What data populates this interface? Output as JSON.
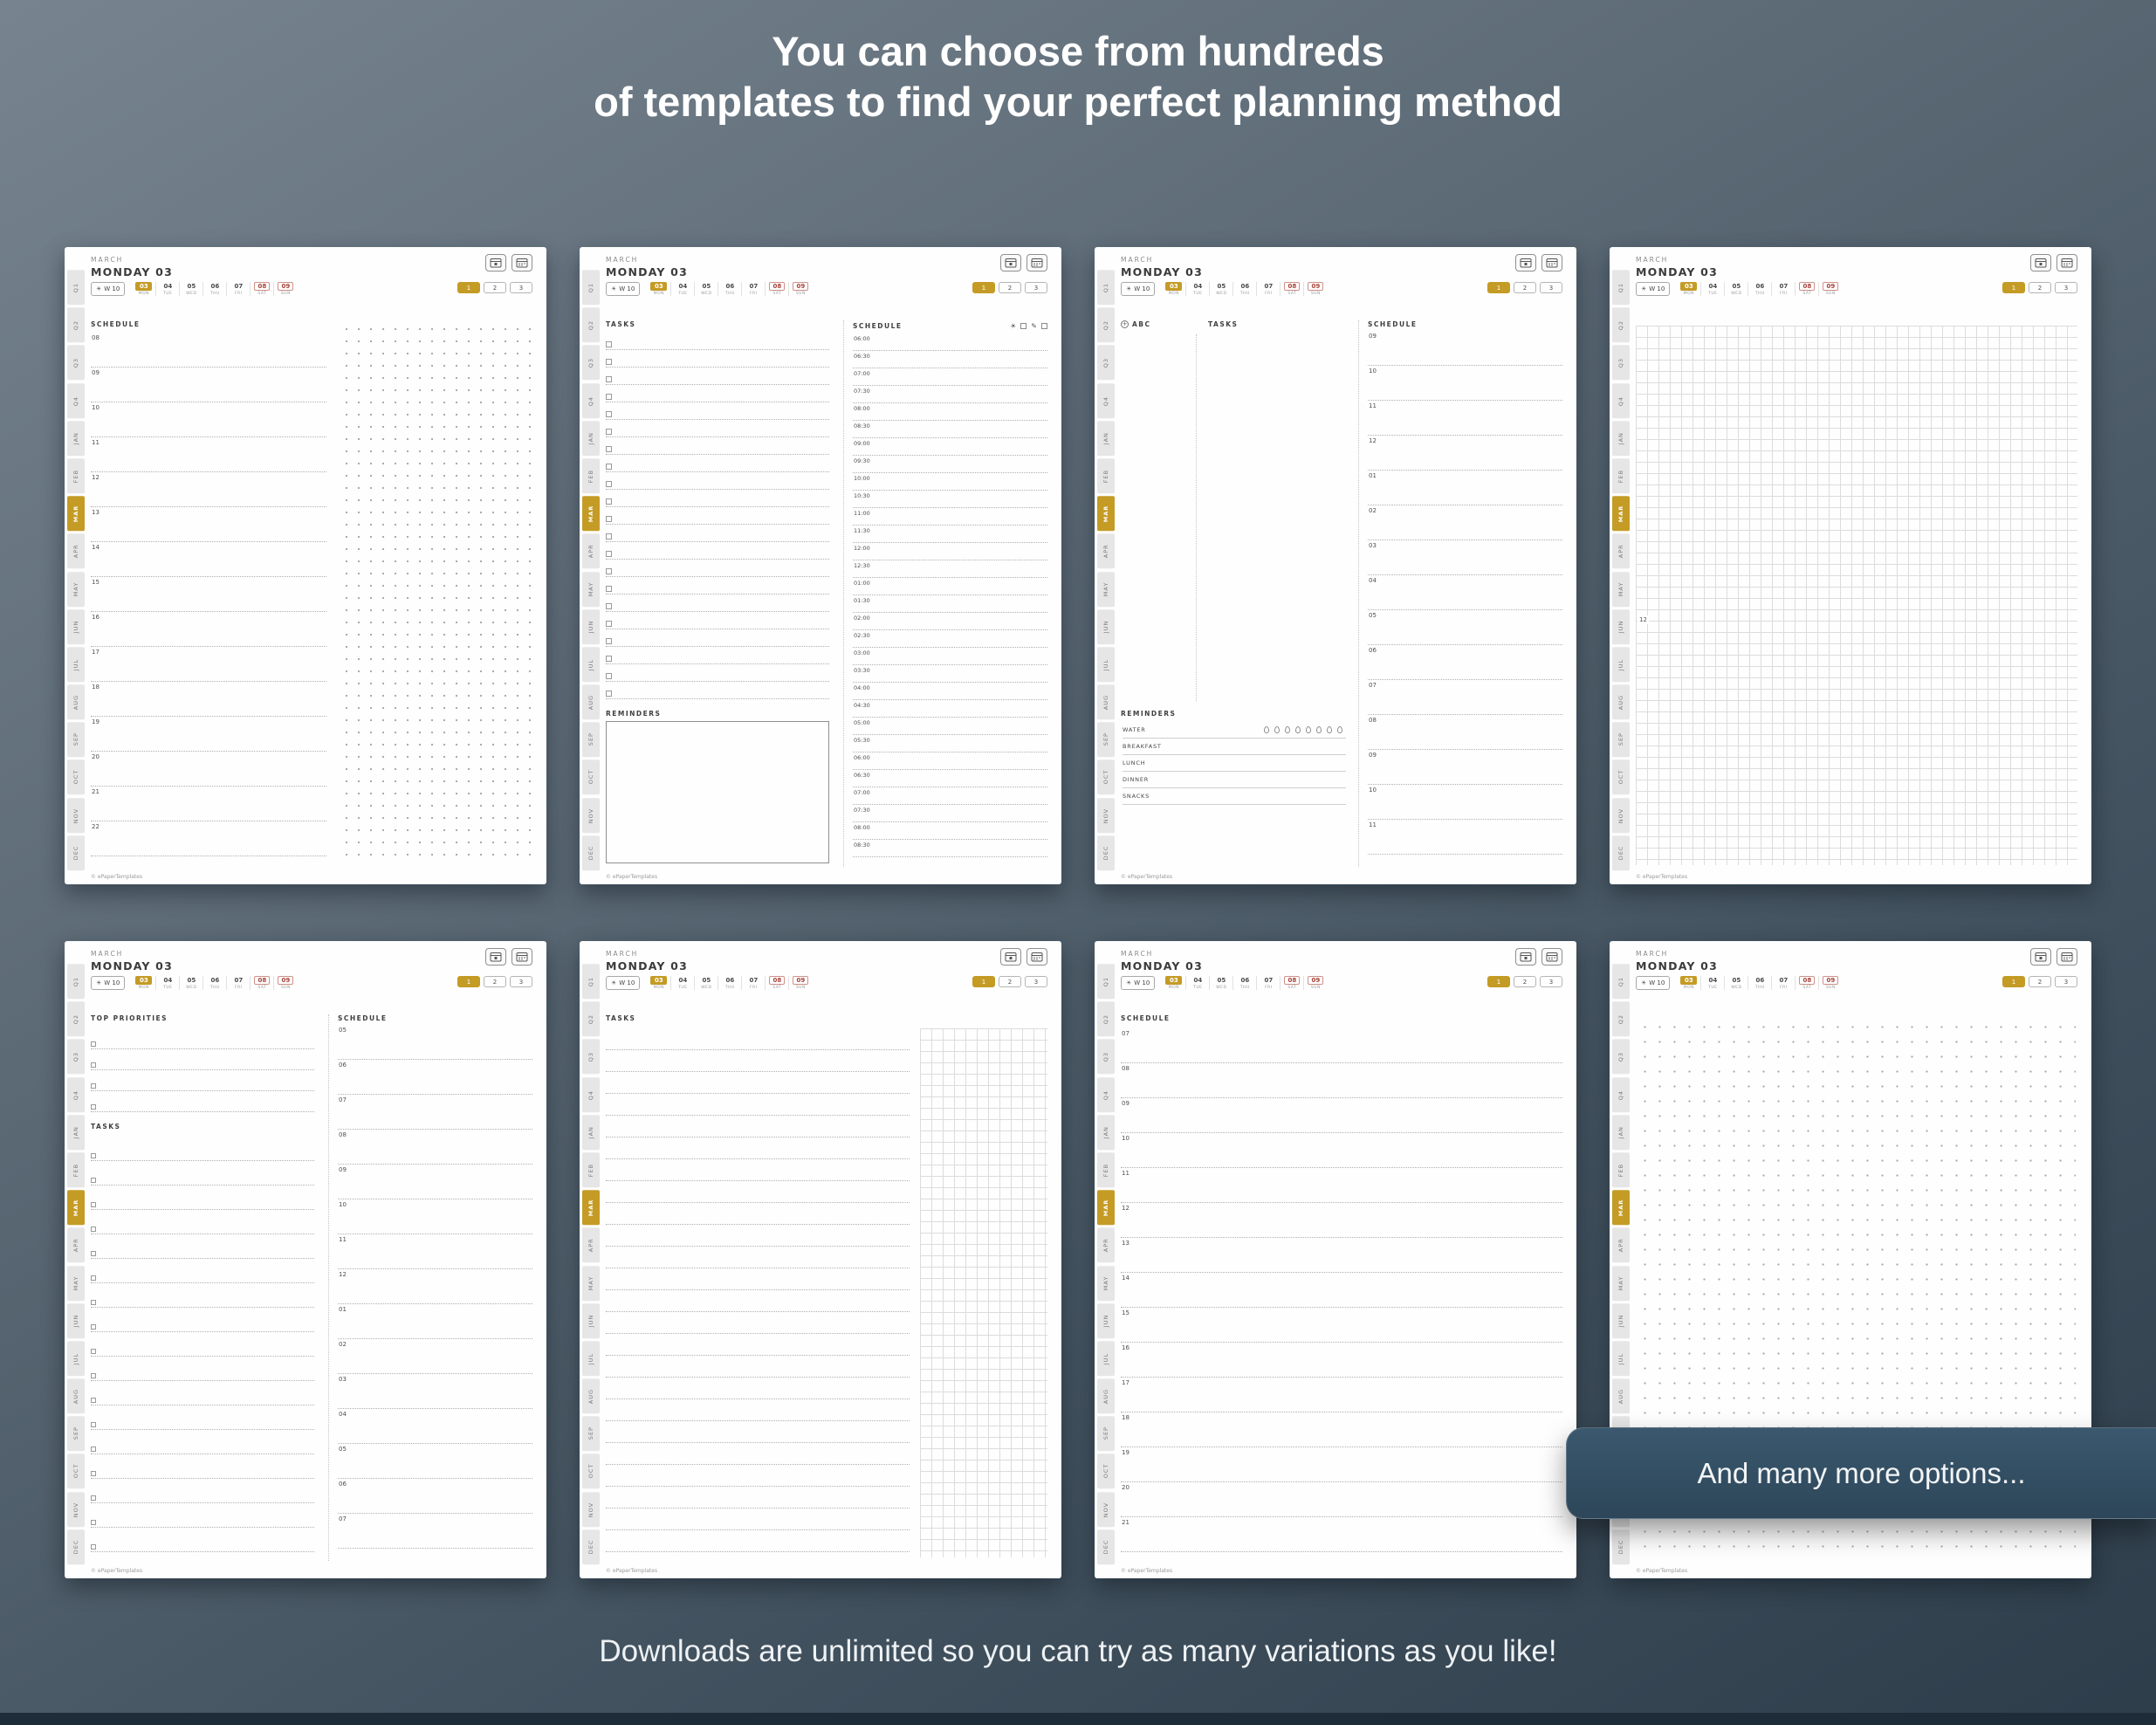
{
  "page": {
    "headline_line1": "You can choose from hundreds",
    "headline_line2": "of templates to find your perfect planning method",
    "bottom_text": "Downloads are unlimited so you can try as many variations as you like!",
    "callout": "And many more options...",
    "colors": {
      "accent_gold": "#c49b25",
      "weekend_red": "#a8433b",
      "callout_bg": "#2d4659",
      "background_top": "#77848f",
      "background_bottom": "#2d3d4a"
    }
  },
  "planner": {
    "month": "MARCH",
    "day_title": "MONDAY 03",
    "week_label": "W 10",
    "days": [
      {
        "num": "03",
        "name": "MON",
        "state": "active"
      },
      {
        "num": "04",
        "name": "TUE",
        "state": "normal"
      },
      {
        "num": "05",
        "name": "WED",
        "state": "normal"
      },
      {
        "num": "06",
        "name": "THU",
        "state": "normal"
      },
      {
        "num": "07",
        "name": "FRI",
        "state": "normal"
      },
      {
        "num": "08",
        "name": "SAT",
        "state": "weekend"
      },
      {
        "num": "09",
        "name": "SUN",
        "state": "weekend"
      }
    ],
    "page_tabs": [
      {
        "label": "1",
        "active": true
      },
      {
        "label": "2",
        "active": false
      },
      {
        "label": "3",
        "active": false
      }
    ],
    "sidebar_tabs": [
      "Q1",
      "Q2",
      "Q3",
      "Q4",
      "JAN",
      "FEB",
      "MAR",
      "APR",
      "MAY",
      "JUN",
      "JUL",
      "AUG",
      "SEP",
      "OCT",
      "NOV",
      "DEC"
    ],
    "active_tab": "MAR",
    "header_icons": [
      "calendar-day-icon",
      "calendar-month-icon"
    ],
    "copyright": "© ePaperTemplates"
  },
  "templates": [
    {
      "type": "schedule-dots",
      "name": "schedule-with-dot-grid",
      "schedule_label": "SCHEDULE",
      "hours": [
        "08",
        "09",
        "10",
        "11",
        "12",
        "13",
        "14",
        "15",
        "16",
        "17",
        "18",
        "19",
        "20",
        "21",
        "22"
      ]
    },
    {
      "type": "tasks-times",
      "name": "tasks-and-half-hour-schedule",
      "tasks_label": "TASKS",
      "schedule_label": "SCHEDULE",
      "reminders_label": "REMINDERS",
      "task_rows": 21,
      "header_icons": [
        "sun-icon",
        "checkbox-icon",
        "pen-icon",
        "checkbox-icon"
      ],
      "times": [
        "06:00",
        "06:30",
        "07:00",
        "07:30",
        "08:00",
        "08:30",
        "09:00",
        "09:30",
        "10:00",
        "10:30",
        "11:00",
        "11:30",
        "12:00",
        "12:30",
        "01:00",
        "01:30",
        "02:00",
        "02:30",
        "03:00",
        "03:30",
        "04:00",
        "04:30",
        "05:00",
        "05:30",
        "06:00",
        "06:30",
        "07:00",
        "07:30",
        "08:00",
        "08:30"
      ]
    },
    {
      "type": "abc",
      "name": "abc-tasks-schedule-reminders",
      "abc_label": "ABC",
      "tasks_label": "TASKS",
      "schedule_label": "SCHEDULE",
      "reminders_label": "REMINDERS",
      "meals": [
        "WATER",
        "BREAKFAST",
        "LUNCH",
        "DINNER",
        "SNACKS"
      ],
      "water_drops": 8,
      "hours": [
        "09",
        "10",
        "11",
        "12",
        "01",
        "02",
        "03",
        "04",
        "05",
        "06",
        "07",
        "08",
        "09",
        "10",
        "11"
      ]
    },
    {
      "type": "grid",
      "name": "square-grid-page",
      "noon_label": "12"
    },
    {
      "type": "priorities",
      "name": "priorities-tasks-schedule",
      "priorities_label": "TOP PRIORITIES",
      "tasks_label": "TASKS",
      "schedule_label": "SCHEDULE",
      "priority_rows": 4,
      "task_rows": 17,
      "hours": [
        "05",
        "06",
        "07",
        "08",
        "09",
        "10",
        "11",
        "12",
        "01",
        "02",
        "03",
        "04",
        "05",
        "06",
        "07"
      ]
    },
    {
      "type": "tasks-grid",
      "name": "tasks-with-grid-column",
      "tasks_label": "TASKS",
      "task_rows": 24
    },
    {
      "type": "schedule-lines",
      "name": "lined-schedule",
      "schedule_label": "SCHEDULE",
      "hours": [
        "07",
        "08",
        "09",
        "10",
        "11",
        "12",
        "13",
        "14",
        "15",
        "16",
        "17",
        "18",
        "19",
        "20",
        "21"
      ]
    },
    {
      "type": "dot-grid",
      "name": "dot-grid-page"
    }
  ]
}
